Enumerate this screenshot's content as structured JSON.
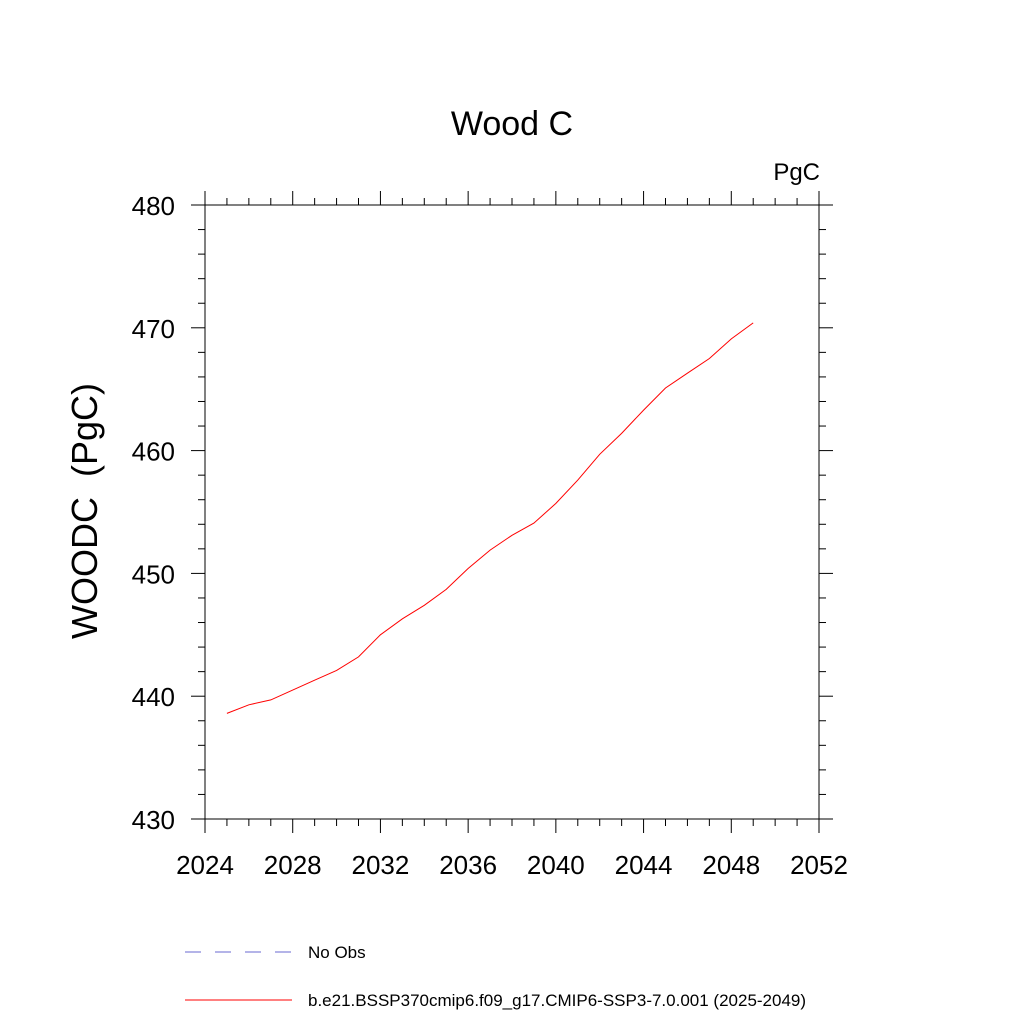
{
  "chart_data": {
    "type": "line",
    "title": "Wood C",
    "units_label": "PgC",
    "ylabel": "WOODC  (PgC)",
    "xlabel": "",
    "xlim": [
      2024,
      2052
    ],
    "ylim": [
      430,
      480
    ],
    "x_ticks": [
      "2024",
      "2028",
      "2032",
      "2036",
      "2040",
      "2044",
      "2048",
      "2052"
    ],
    "y_ticks": [
      "430",
      "440",
      "450",
      "460",
      "470",
      "480"
    ],
    "grid": false,
    "legend_position": "bottom",
    "series": [
      {
        "name": "b.e21.BSSP370cmip6.f09_g17.CMIP6-SSP3-7.0.001 (2025-2049)",
        "color": "#ff0000",
        "x": [
          2025,
          2026,
          2027,
          2028,
          2029,
          2030,
          2031,
          2032,
          2033,
          2034,
          2035,
          2036,
          2037,
          2038,
          2039,
          2040,
          2041,
          2042,
          2043,
          2044,
          2045,
          2046,
          2047,
          2048,
          2049
        ],
        "y": [
          438.6,
          439.3,
          439.7,
          440.5,
          441.3,
          442.1,
          443.2,
          445.0,
          446.3,
          447.4,
          448.7,
          450.4,
          451.9,
          453.1,
          454.1,
          455.7,
          457.6,
          459.7,
          461.4,
          463.3,
          465.1,
          466.3,
          467.5,
          469.1,
          470.4
        ]
      }
    ],
    "legend": [
      {
        "label": "No Obs",
        "color": "#6a6ad0",
        "style": "dashed"
      },
      {
        "label": "b.e21.BSSP370cmip6.f09_g17.CMIP6-SSP3-7.0.001 (2025-2049)",
        "color": "#ff0000",
        "style": "solid"
      }
    ]
  }
}
